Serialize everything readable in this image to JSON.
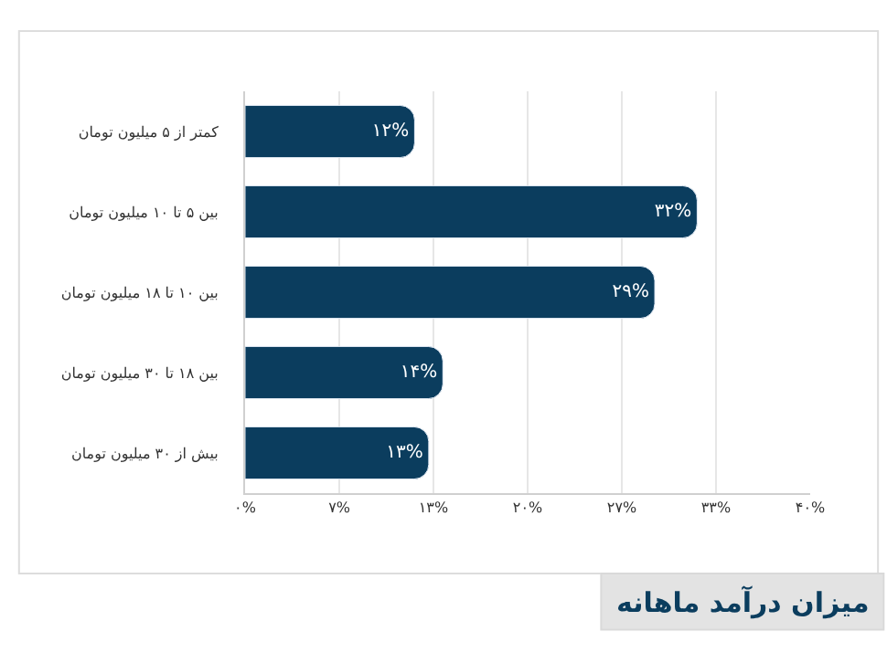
{
  "chart_data": {
    "type": "bar",
    "orientation": "horizontal",
    "title": "میزان درآمد ماهانه",
    "categories": [
      "کمتر از ۵ میلیون تومان",
      "بین ۵ تا ۱۰ میلیون تومان",
      "بین ۱۰ تا ۱۸ میلیون تومان",
      "بین ۱۸ تا ۳۰ میلیون تومان",
      "بیش از ۳۰ میلیون تومان"
    ],
    "values": [
      12,
      32,
      29,
      14,
      13
    ],
    "value_labels": [
      "۱۲%",
      "۳۲%",
      "۲۹%",
      "۱۴%",
      "۱۳%"
    ],
    "color": "#0b3d5e",
    "xlim": [
      0,
      40
    ],
    "xticks": [
      {
        "value": 0,
        "label": "۰%"
      },
      {
        "value": 6.67,
        "label": "۷%"
      },
      {
        "value": 13.33,
        "label": "۱۳%"
      },
      {
        "value": 20,
        "label": "۲۰%"
      },
      {
        "value": 26.67,
        "label": "۲۷%"
      },
      {
        "value": 33.33,
        "label": "۳۳%"
      },
      {
        "value": 40,
        "label": "۴۰%"
      }
    ],
    "grid": "x",
    "legend": false
  }
}
